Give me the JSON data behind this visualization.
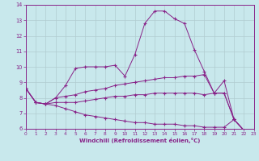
{
  "xlabel": "Windchill (Refroidissement éolien,°C)",
  "xlim": [
    0,
    23
  ],
  "ylim": [
    6,
    14
  ],
  "xticks": [
    0,
    1,
    2,
    3,
    4,
    5,
    6,
    7,
    8,
    9,
    10,
    11,
    12,
    13,
    14,
    15,
    16,
    17,
    18,
    19,
    20,
    21,
    22,
    23
  ],
  "yticks": [
    6,
    7,
    8,
    9,
    10,
    11,
    12,
    13,
    14
  ],
  "bg_color": "#c8e8ec",
  "line_color": "#882288",
  "grid_color": "#b0ccd0",
  "lines": [
    {
      "x": [
        0,
        1,
        2,
        3,
        4,
        5,
        6,
        7,
        8,
        9,
        10,
        11,
        12,
        13,
        14,
        15,
        16,
        17,
        18,
        19,
        20,
        21,
        22
      ],
      "y": [
        8.6,
        7.7,
        7.6,
        8.0,
        8.8,
        9.9,
        10.0,
        10.0,
        10.0,
        10.1,
        9.4,
        10.8,
        12.8,
        13.6,
        13.6,
        13.1,
        12.8,
        11.1,
        9.7,
        8.3,
        9.1,
        6.6,
        5.9
      ]
    },
    {
      "x": [
        0,
        1,
        2,
        3,
        4,
        5,
        6,
        7,
        8,
        9,
        10,
        11,
        12,
        13,
        14,
        15,
        16,
        17,
        18,
        19,
        20,
        21,
        22
      ],
      "y": [
        8.6,
        7.7,
        7.6,
        8.0,
        8.1,
        8.2,
        8.4,
        8.5,
        8.6,
        8.8,
        8.9,
        9.0,
        9.1,
        9.2,
        9.3,
        9.3,
        9.4,
        9.4,
        9.5,
        8.3,
        8.3,
        6.6,
        5.9
      ]
    },
    {
      "x": [
        0,
        1,
        2,
        3,
        4,
        5,
        6,
        7,
        8,
        9,
        10,
        11,
        12,
        13,
        14,
        15,
        16,
        17,
        18,
        19,
        20,
        21,
        22
      ],
      "y": [
        8.6,
        7.7,
        7.6,
        7.7,
        7.7,
        7.7,
        7.8,
        7.9,
        8.0,
        8.1,
        8.1,
        8.2,
        8.2,
        8.3,
        8.3,
        8.3,
        8.3,
        8.3,
        8.2,
        8.3,
        8.3,
        6.6,
        5.9
      ]
    },
    {
      "x": [
        0,
        1,
        2,
        3,
        4,
        5,
        6,
        7,
        8,
        9,
        10,
        11,
        12,
        13,
        14,
        15,
        16,
        17,
        18,
        19,
        20,
        21,
        22
      ],
      "y": [
        8.6,
        7.7,
        7.6,
        7.5,
        7.3,
        7.1,
        6.9,
        6.8,
        6.7,
        6.6,
        6.5,
        6.4,
        6.4,
        6.3,
        6.3,
        6.3,
        6.2,
        6.2,
        6.1,
        6.1,
        6.1,
        6.6,
        5.9
      ]
    }
  ]
}
